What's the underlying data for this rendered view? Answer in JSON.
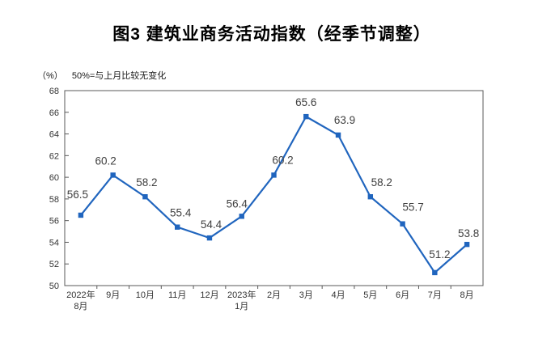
{
  "chart_data": {
    "type": "line",
    "title": "图3  建筑业商务活动指数（经季节调整）",
    "unit": "（%）",
    "note": "50%=与上月比较无变化",
    "categories": [
      "2022年\n8月",
      "9月",
      "10月",
      "11月",
      "12月",
      "2023年\n1月",
      "2月",
      "3月",
      "4月",
      "5月",
      "6月",
      "7月",
      "8月"
    ],
    "values": [
      56.5,
      60.2,
      58.2,
      55.4,
      54.4,
      56.4,
      60.2,
      65.6,
      63.9,
      58.2,
      55.7,
      51.2,
      53.8
    ],
    "ylim": [
      50,
      68
    ],
    "ytick_step": 2,
    "grid": false,
    "legend": "none",
    "marker": "square",
    "colors": {
      "line": "#2065BE",
      "data_label": "#404040",
      "axis": "#595959",
      "tick_text": "#333333"
    },
    "label_dx": [
      -4,
      -9,
      2,
      4,
      2,
      -6,
      11,
      0,
      8,
      14,
      13,
      6,
      2
    ],
    "label_dy": [
      -21,
      -13,
      -13,
      -13,
      -12,
      -11,
      -14,
      -13,
      -14,
      -13,
      -16,
      -18,
      -9
    ]
  }
}
